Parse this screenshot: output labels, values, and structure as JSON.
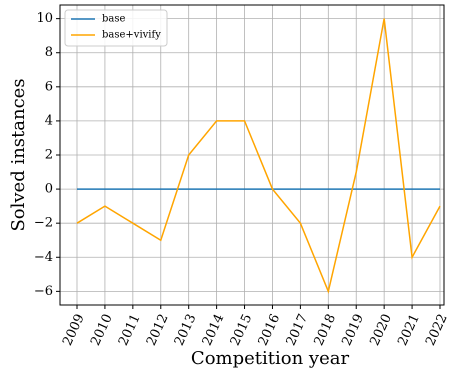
{
  "chart_data": {
    "type": "line",
    "title": "",
    "xlabel": "Competition year",
    "ylabel": "Solved instances",
    "x": [
      "2009",
      "2010",
      "2011",
      "2012",
      "2013",
      "2014",
      "2015",
      "2016",
      "2017",
      "2018",
      "2019",
      "2020",
      "2021",
      "2022"
    ],
    "series": [
      {
        "name": "base",
        "color": "#1f77b4",
        "values": [
          0,
          0,
          0,
          0,
          0,
          0,
          0,
          0,
          0,
          0,
          0,
          0,
          0,
          0
        ]
      },
      {
        "name": "base+vivify",
        "color": "#ffa500",
        "values": [
          -2,
          -1,
          -2,
          -3,
          2,
          4,
          4,
          0,
          -2,
          -6,
          1,
          10,
          -4,
          -1
        ]
      }
    ],
    "ylim": [
      -6.8,
      10.8
    ],
    "yticks": [
      -6,
      -4,
      -2,
      0,
      2,
      4,
      6,
      8,
      10
    ],
    "ytick_labels": [
      "−6",
      "−4",
      "−2",
      "0",
      "2",
      "4",
      "6",
      "8",
      "10"
    ],
    "grid": true,
    "legend_position": "upper-left"
  }
}
